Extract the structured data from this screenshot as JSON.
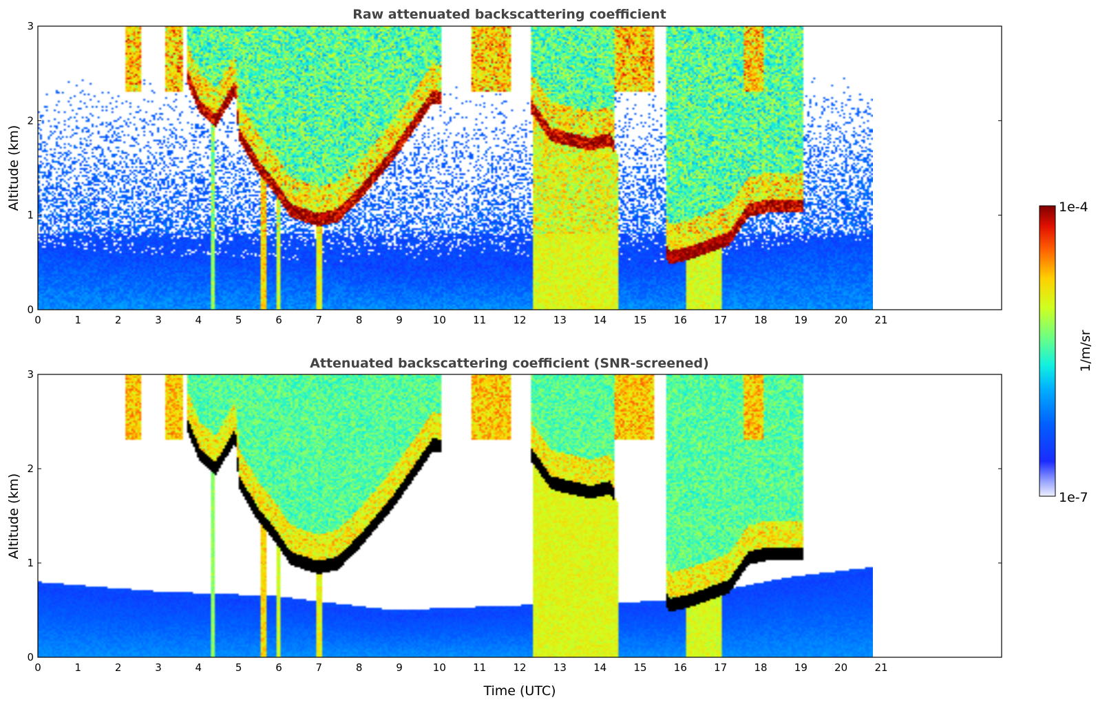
{
  "chart_data": [
    {
      "type": "heatmap",
      "title": "Raw attenuated backscattering coefficient",
      "xlabel": "",
      "ylabel": "Altitude (km)",
      "xlim": [
        0,
        24
      ],
      "ylim": [
        0,
        3
      ],
      "xticks": [
        "0",
        "1",
        "2",
        "3",
        "4",
        "5",
        "6",
        "7",
        "8",
        "9",
        "10",
        "11",
        "12",
        "13",
        "14",
        "15",
        "16",
        "17",
        "18",
        "19",
        "20",
        "21"
      ],
      "yticks": [
        "0",
        "1",
        "2",
        "3"
      ],
      "data_end_time": 21.15,
      "screened": false
    },
    {
      "type": "heatmap",
      "title": "Attenuated backscattering coefficient (SNR-screened)",
      "xlabel": "Time (UTC)",
      "ylabel": "Altitude (km)",
      "xlim": [
        0,
        24
      ],
      "ylim": [
        0,
        3
      ],
      "xticks": [
        "0",
        "1",
        "2",
        "3",
        "4",
        "5",
        "6",
        "7",
        "8",
        "9",
        "10",
        "11",
        "12",
        "13",
        "14",
        "15",
        "16",
        "17",
        "18",
        "19",
        "20",
        "21"
      ],
      "yticks": [
        "0",
        "1",
        "2",
        "3"
      ],
      "data_end_time": 21.15,
      "screened": true
    }
  ],
  "colorbar": {
    "label": "1/m/sr",
    "max_label": "1e-4",
    "min_label": "1e-7",
    "colormap": "jet",
    "scale": "log"
  },
  "features": {
    "boundary_layer_top_km": [
      [
        0,
        0.75
      ],
      [
        3,
        0.65
      ],
      [
        6,
        0.6
      ],
      [
        9,
        0.45
      ],
      [
        12,
        0.5
      ],
      [
        16,
        0.55
      ],
      [
        19,
        0.8
      ],
      [
        21,
        0.9
      ]
    ],
    "cloud_base_km": [
      [
        3.8,
        2.4
      ],
      [
        4.1,
        2.1
      ],
      [
        4.5,
        1.95
      ],
      [
        5,
        2.3
      ],
      [
        5.1,
        1.8
      ],
      [
        5.6,
        1.45
      ],
      [
        6,
        1.25
      ],
      [
        6.4,
        1.0
      ],
      [
        7.1,
        0.9
      ],
      [
        7.6,
        0.95
      ],
      [
        8.2,
        1.2
      ],
      [
        9,
        1.6
      ],
      [
        10,
        2.2
      ],
      [
        12.5,
        2.1
      ],
      [
        13,
        1.8
      ],
      [
        14,
        1.7
      ],
      [
        14.5,
        1.75
      ],
      [
        16,
        0.5
      ],
      [
        16.5,
        0.55
      ],
      [
        17.5,
        0.7
      ],
      [
        18,
        1.0
      ],
      [
        18.5,
        1.05
      ],
      [
        19.3,
        1.05
      ]
    ],
    "precipitation_shafts": [
      {
        "t0": 5.65,
        "t1": 5.78,
        "strength": 0.95
      },
      {
        "t0": 6.05,
        "t1": 6.12,
        "strength": 0.7
      },
      {
        "t0": 7.05,
        "t1": 7.2,
        "strength": 0.8
      },
      {
        "t0": 4.4,
        "t1": 4.5,
        "strength": 0.45
      },
      {
        "t0": 12.55,
        "t1": 14.7,
        "strength": 0.75
      },
      {
        "t0": 16.4,
        "t1": 17.3,
        "strength": 0.7
      }
    ]
  },
  "colors": {
    "cloud_core": "#8b0000",
    "screened_peak": "#000000",
    "title": "#444444"
  }
}
